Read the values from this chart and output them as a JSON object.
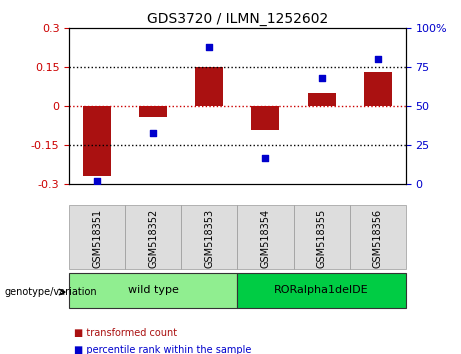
{
  "title": "GDS3720 / ILMN_1252602",
  "samples": [
    "GSM518351",
    "GSM518352",
    "GSM518353",
    "GSM518354",
    "GSM518355",
    "GSM518356"
  ],
  "transformed_counts": [
    -0.27,
    -0.04,
    0.15,
    -0.09,
    0.05,
    0.13
  ],
  "percentile_ranks": [
    2,
    33,
    88,
    17,
    68,
    80
  ],
  "groups": [
    {
      "label": "wild type",
      "samples": [
        0,
        1,
        2
      ],
      "color": "#90EE90"
    },
    {
      "label": "RORalpha1delDE",
      "samples": [
        3,
        4,
        5
      ],
      "color": "#00CC44"
    }
  ],
  "ylim_left": [
    -0.3,
    0.3
  ],
  "ylim_right": [
    0,
    100
  ],
  "yticks_left": [
    -0.3,
    -0.15,
    0,
    0.15,
    0.3
  ],
  "yticks_right": [
    0,
    25,
    50,
    75,
    100
  ],
  "bar_color": "#AA1111",
  "scatter_color": "#0000CC",
  "hline_color": "#CC0000",
  "dotted_line_color": "black",
  "background_color": "#ffffff",
  "plot_bg_color": "#ffffff",
  "left_label_color": "#CC0000",
  "right_label_color": "#0000CC",
  "legend_items": [
    {
      "label": "transformed count",
      "color": "#AA1111"
    },
    {
      "label": "percentile rank within the sample",
      "color": "#0000CC"
    }
  ],
  "genotype_label": "genotype/variation",
  "bar_width": 0.5
}
